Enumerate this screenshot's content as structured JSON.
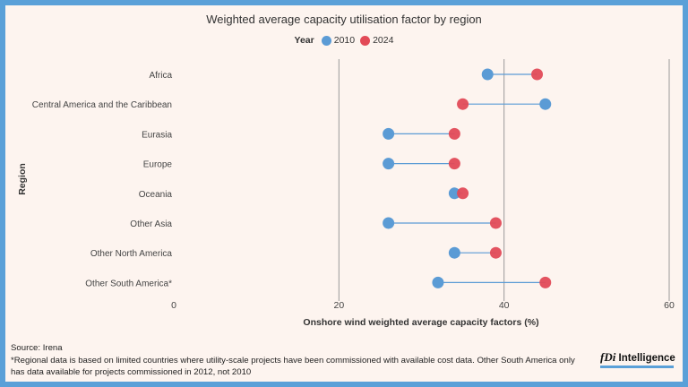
{
  "title": "Weighted average capacity utilisation factor by region",
  "legend": {
    "title": "Year",
    "items": [
      {
        "label": "2010",
        "color": "#5b9bd5"
      },
      {
        "label": "2024",
        "color": "#e24a57"
      }
    ]
  },
  "chart_data": {
    "type": "dumbbell",
    "xlabel": "Onshore wind weighted average capacity factors (%)",
    "ylabel": "Region",
    "xlim": [
      0,
      60
    ],
    "xticks": [
      0,
      20,
      40,
      60
    ],
    "grid": true,
    "categories": [
      "Africa",
      "Central America and the Caribbean",
      "Eurasia",
      "Europe",
      "Oceania",
      "Other Asia",
      "Other North America",
      "Other South America*"
    ],
    "series": [
      {
        "name": "2010",
        "color": "#5b9bd5",
        "values": [
          38,
          45,
          26,
          26,
          34,
          26,
          34,
          32
        ]
      },
      {
        "name": "2024",
        "color": "#e24a57",
        "values": [
          44,
          35,
          34,
          34,
          35,
          39,
          39,
          45
        ]
      }
    ],
    "line_color": "#5b9bd5"
  },
  "source": {
    "line1": "Source: Irena",
    "line2": "*Regional data is based on limited countries where utility-scale projects have been commissioned with available cost data. Other South America only has data available for projects commissioned in 2012, not 2010"
  },
  "logo": {
    "brand": "fDi",
    "text": "Intelligence"
  }
}
